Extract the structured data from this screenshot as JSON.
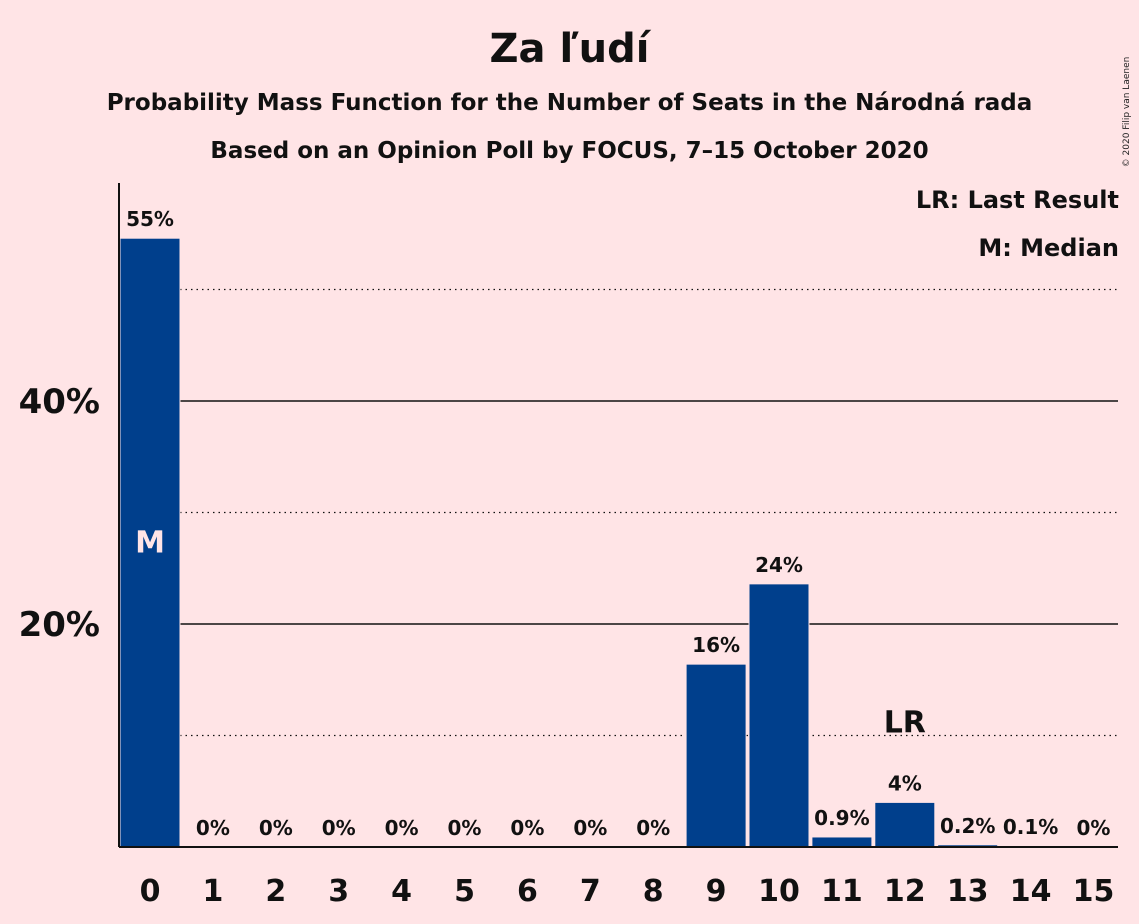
{
  "chart_data": {
    "type": "bar",
    "title": "Za ľudí",
    "subtitle": "Probability Mass Function for the Number of Seats in the Národná rada",
    "subtitle2": "Based on an Opinion Poll by FOCUS, 7–15 October 2020",
    "copyright": "© 2020 Filip van Laenen",
    "legend": {
      "last_result": "LR: Last Result",
      "median": "M: Median",
      "placement": "top-right"
    },
    "categories": [
      "0",
      "1",
      "2",
      "3",
      "4",
      "5",
      "6",
      "7",
      "8",
      "9",
      "10",
      "11",
      "12",
      "13",
      "14",
      "15"
    ],
    "values": [
      54.6,
      0,
      0,
      0,
      0,
      0,
      0,
      0,
      0,
      16.4,
      23.6,
      0.9,
      4.0,
      0.2,
      0.1,
      0
    ],
    "data_labels": [
      "55%",
      "0%",
      "0%",
      "0%",
      "0%",
      "0%",
      "0%",
      "0%",
      "0%",
      "16%",
      "24%",
      "0.9%",
      "4%",
      "0.2%",
      "0.1%",
      "0%"
    ],
    "median_index": 0,
    "median_label": "M",
    "last_result_index": 12,
    "last_result_label": "LR",
    "y_ticks": [
      {
        "value": 20,
        "label": "20%"
      },
      {
        "value": 40,
        "label": "40%"
      }
    ],
    "minor_gridlines": [
      10,
      30,
      50
    ],
    "ylim": [
      0,
      58
    ],
    "colors": {
      "bar": "#003F8C",
      "background": "#FFE4E6",
      "text": "#111111",
      "median_text": "#FFE4E6"
    }
  }
}
